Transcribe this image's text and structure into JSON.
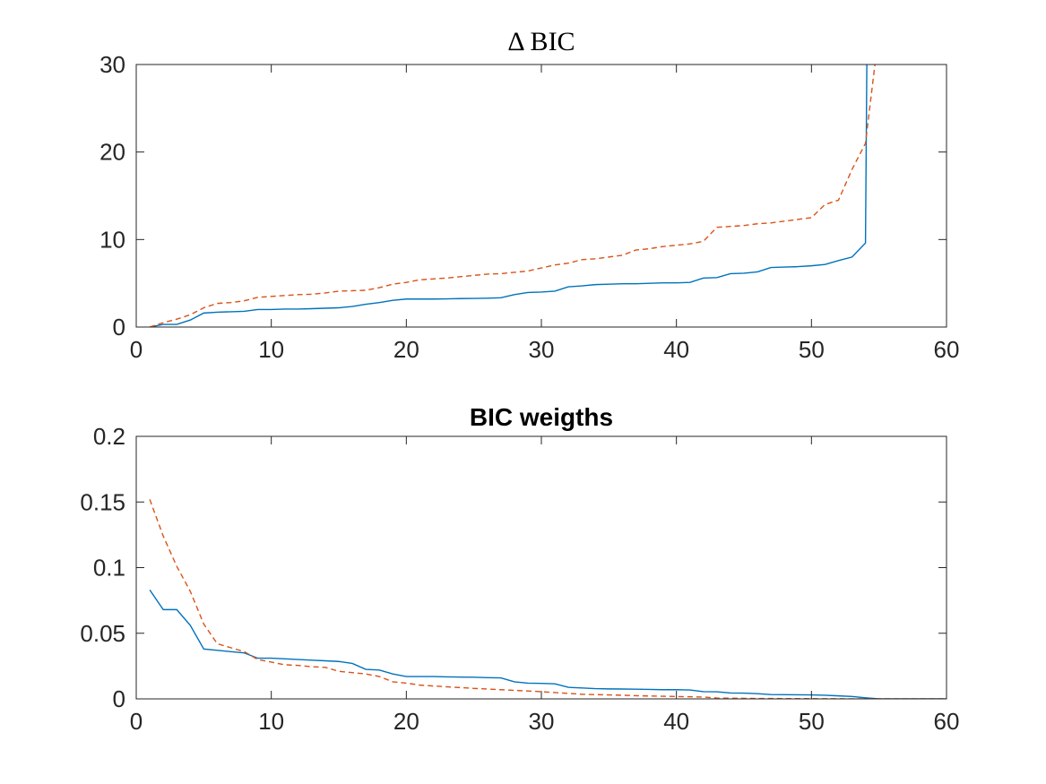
{
  "chart_data": [
    {
      "type": "line",
      "title": "Δ BIC",
      "xlim": [
        0,
        60
      ],
      "ylim": [
        0,
        30
      ],
      "xticks": [
        "0",
        "10",
        "20",
        "30",
        "40",
        "50",
        "60"
      ],
      "yticks": [
        "0",
        "10",
        "20",
        "30"
      ],
      "grid": false,
      "series": [
        {
          "color": "#0072BD",
          "style": "solid",
          "x": [
            1,
            2,
            3,
            4,
            5,
            6,
            7,
            8,
            9,
            10,
            11,
            12,
            13,
            14,
            15,
            16,
            17,
            18,
            19,
            20,
            21,
            22,
            23,
            24,
            25,
            26,
            27,
            28,
            29,
            30,
            31,
            32,
            33,
            34,
            35,
            36,
            37,
            38,
            39,
            40,
            41,
            42,
            43,
            44,
            45,
            46,
            47,
            48,
            49,
            50,
            51,
            52,
            53,
            54,
            54.1
          ],
          "y": [
            0,
            0.3,
            0.3,
            0.8,
            1.6,
            1.7,
            1.75,
            1.8,
            2.0,
            2.0,
            2.05,
            2.05,
            2.1,
            2.15,
            2.2,
            2.35,
            2.6,
            2.8,
            3.05,
            3.2,
            3.2,
            3.2,
            3.22,
            3.25,
            3.27,
            3.3,
            3.35,
            3.7,
            3.95,
            4.0,
            4.1,
            4.6,
            4.7,
            4.85,
            4.9,
            4.95,
            4.95,
            5.0,
            5.05,
            5.05,
            5.1,
            5.6,
            5.65,
            6.1,
            6.15,
            6.3,
            6.8,
            6.85,
            6.9,
            7.0,
            7.15,
            7.6,
            8.0,
            9.6,
            30
          ]
        },
        {
          "color": "#D95319",
          "style": "dashed",
          "x": [
            1,
            2,
            3,
            4,
            5,
            6,
            7,
            8,
            9,
            10,
            11,
            12,
            13,
            14,
            15,
            16,
            17,
            18,
            19,
            20,
            21,
            22,
            23,
            24,
            25,
            26,
            27,
            28,
            29,
            30,
            31,
            32,
            33,
            34,
            35,
            36,
            37,
            38,
            39,
            40,
            41,
            42,
            43,
            44,
            45,
            46,
            47,
            48,
            49,
            50,
            51,
            52,
            53,
            54,
            54.7
          ],
          "y": [
            0,
            0.5,
            0.9,
            1.4,
            2.2,
            2.7,
            2.8,
            3.0,
            3.4,
            3.5,
            3.6,
            3.7,
            3.75,
            3.9,
            4.1,
            4.15,
            4.2,
            4.5,
            4.9,
            5.1,
            5.4,
            5.5,
            5.6,
            5.75,
            5.9,
            6.05,
            6.1,
            6.25,
            6.4,
            6.75,
            7.1,
            7.3,
            7.7,
            7.8,
            8.0,
            8.2,
            8.8,
            8.95,
            9.2,
            9.35,
            9.5,
            9.8,
            11.4,
            11.5,
            11.6,
            11.8,
            11.9,
            12.1,
            12.3,
            12.5,
            14.0,
            14.5,
            18.0,
            21.0,
            30
          ]
        }
      ]
    },
    {
      "type": "line",
      "title": "BIC weigths",
      "xlim": [
        0,
        60
      ],
      "ylim": [
        0,
        0.2
      ],
      "xticks": [
        "0",
        "10",
        "20",
        "30",
        "40",
        "50",
        "60"
      ],
      "yticks": [
        "0",
        "0.05",
        "0.1",
        "0.15",
        "0.2"
      ],
      "grid": false,
      "series": [
        {
          "color": "#0072BD",
          "style": "solid",
          "x": [
            1,
            2,
            3,
            4,
            5,
            6,
            7,
            8,
            9,
            10,
            11,
            12,
            13,
            14,
            15,
            16,
            17,
            18,
            19,
            20,
            21,
            22,
            23,
            24,
            25,
            26,
            27,
            28,
            29,
            30,
            31,
            32,
            33,
            34,
            35,
            36,
            37,
            38,
            39,
            40,
            41,
            42,
            43,
            44,
            45,
            46,
            47,
            48,
            49,
            50,
            51,
            52,
            53,
            54,
            55,
            56,
            57,
            58,
            59,
            60
          ],
          "y": [
            0.083,
            0.068,
            0.068,
            0.056,
            0.038,
            0.037,
            0.036,
            0.035,
            0.031,
            0.031,
            0.0305,
            0.03,
            0.0295,
            0.029,
            0.0285,
            0.027,
            0.0225,
            0.022,
            0.019,
            0.017,
            0.017,
            0.017,
            0.0168,
            0.0166,
            0.0165,
            0.0162,
            0.016,
            0.013,
            0.012,
            0.0118,
            0.0115,
            0.0088,
            0.0083,
            0.0078,
            0.0076,
            0.0075,
            0.0074,
            0.0072,
            0.007,
            0.007,
            0.0068,
            0.0055,
            0.0054,
            0.0045,
            0.0044,
            0.004,
            0.0033,
            0.0032,
            0.0031,
            0.003,
            0.0028,
            0.0023,
            0.0018,
            0.0008,
            0,
            0,
            0,
            0,
            0,
            0
          ]
        },
        {
          "color": "#D95319",
          "style": "dashed",
          "x": [
            1,
            2,
            3,
            4,
            5,
            6,
            7,
            8,
            9,
            10,
            11,
            12,
            13,
            14,
            15,
            16,
            17,
            18,
            19,
            20,
            21,
            22,
            23,
            24,
            25,
            26,
            27,
            28,
            29,
            30,
            31,
            32,
            33,
            34,
            35,
            36,
            37,
            38,
            39,
            40,
            41,
            42,
            43,
            44,
            45,
            46,
            47,
            48,
            49,
            50,
            51,
            52,
            53,
            54,
            55,
            56,
            57,
            58,
            59,
            60
          ],
          "y": [
            0.152,
            0.124,
            0.101,
            0.082,
            0.057,
            0.042,
            0.039,
            0.036,
            0.03,
            0.028,
            0.026,
            0.0255,
            0.0245,
            0.024,
            0.021,
            0.02,
            0.019,
            0.017,
            0.013,
            0.012,
            0.0105,
            0.0098,
            0.0092,
            0.0086,
            0.008,
            0.0075,
            0.007,
            0.0065,
            0.006,
            0.0055,
            0.0048,
            0.0042,
            0.0035,
            0.0033,
            0.003,
            0.0028,
            0.0024,
            0.0022,
            0.002,
            0.0018,
            0.0016,
            0.0014,
            0.0006,
            0.0005,
            0.0004,
            0.0003,
            0.0003,
            0.0002,
            0.0002,
            0.0002,
            0.0001,
            0.0001,
            0,
            0,
            0,
            0,
            0,
            0,
            0,
            0
          ]
        }
      ]
    }
  ]
}
